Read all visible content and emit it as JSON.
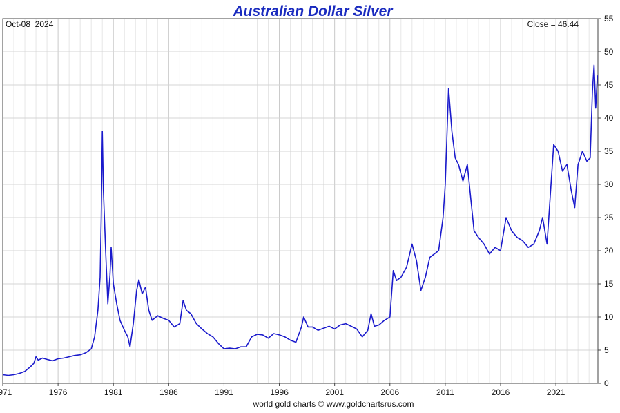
{
  "chart_data": {
    "type": "line",
    "title": "Australian Dollar Silver",
    "date_label": "Oct-08  2024",
    "close_label": "Close = 46.44",
    "credit": "world gold charts © www.goldchartsrus.com",
    "xlabel": "",
    "ylabel": "",
    "xlim": [
      1971,
      2024.8
    ],
    "ylim": [
      0,
      55
    ],
    "x_ticks": [
      1971,
      1976,
      1981,
      1986,
      1991,
      1996,
      2001,
      2006,
      2011,
      2016,
      2021
    ],
    "x_tick_labels": [
      "1971",
      "1976",
      "1981",
      "1986",
      "1991",
      "1996",
      "2001",
      "2006",
      "2011",
      "2016",
      "2021"
    ],
    "y_ticks": [
      0,
      5,
      10,
      15,
      20,
      25,
      30,
      35,
      40,
      45,
      50,
      55
    ],
    "y_axis_side": "right",
    "grid": true,
    "line_color": "#1a1acc",
    "series": [
      {
        "values": [
          [
            1971.0,
            1.3
          ],
          [
            1971.5,
            1.2
          ],
          [
            1972.0,
            1.3
          ],
          [
            1972.5,
            1.5
          ],
          [
            1973.0,
            1.8
          ],
          [
            1973.5,
            2.5
          ],
          [
            1973.8,
            3.0
          ],
          [
            1974.0,
            4.0
          ],
          [
            1974.2,
            3.5
          ],
          [
            1974.6,
            3.8
          ],
          [
            1975.0,
            3.6
          ],
          [
            1975.5,
            3.4
          ],
          [
            1976.0,
            3.7
          ],
          [
            1976.5,
            3.8
          ],
          [
            1977.0,
            4.0
          ],
          [
            1977.5,
            4.2
          ],
          [
            1978.0,
            4.3
          ],
          [
            1978.5,
            4.6
          ],
          [
            1979.0,
            5.2
          ],
          [
            1979.3,
            7.0
          ],
          [
            1979.6,
            11.0
          ],
          [
            1979.8,
            16.0
          ],
          [
            1979.9,
            25.0
          ],
          [
            1980.0,
            38.0
          ],
          [
            1980.1,
            29.0
          ],
          [
            1980.3,
            20.0
          ],
          [
            1980.5,
            12.0
          ],
          [
            1980.7,
            16.5
          ],
          [
            1980.8,
            20.5
          ],
          [
            1981.0,
            15.0
          ],
          [
            1981.3,
            12.0
          ],
          [
            1981.6,
            9.5
          ],
          [
            1982.0,
            8.0
          ],
          [
            1982.3,
            7.0
          ],
          [
            1982.5,
            5.5
          ],
          [
            1982.8,
            9.0
          ],
          [
            1983.1,
            14.0
          ],
          [
            1983.3,
            15.6
          ],
          [
            1983.6,
            13.5
          ],
          [
            1983.9,
            14.5
          ],
          [
            1984.2,
            11.0
          ],
          [
            1984.5,
            9.5
          ],
          [
            1985.0,
            10.2
          ],
          [
            1985.5,
            9.8
          ],
          [
            1986.0,
            9.5
          ],
          [
            1986.5,
            8.5
          ],
          [
            1987.0,
            9.0
          ],
          [
            1987.3,
            12.5
          ],
          [
            1987.6,
            11.0
          ],
          [
            1988.0,
            10.5
          ],
          [
            1988.5,
            9.0
          ],
          [
            1989.0,
            8.2
          ],
          [
            1989.5,
            7.5
          ],
          [
            1990.0,
            7.0
          ],
          [
            1990.5,
            6.0
          ],
          [
            1991.0,
            5.2
          ],
          [
            1991.5,
            5.3
          ],
          [
            1992.0,
            5.2
          ],
          [
            1992.5,
            5.5
          ],
          [
            1993.0,
            5.5
          ],
          [
            1993.5,
            7.0
          ],
          [
            1994.0,
            7.4
          ],
          [
            1994.5,
            7.3
          ],
          [
            1995.0,
            6.8
          ],
          [
            1995.5,
            7.5
          ],
          [
            1996.0,
            7.3
          ],
          [
            1996.5,
            7.0
          ],
          [
            1997.0,
            6.5
          ],
          [
            1997.5,
            6.2
          ],
          [
            1998.0,
            8.5
          ],
          [
            1998.2,
            10.0
          ],
          [
            1998.6,
            8.5
          ],
          [
            1999.0,
            8.5
          ],
          [
            1999.5,
            8.0
          ],
          [
            2000.0,
            8.3
          ],
          [
            2000.5,
            8.6
          ],
          [
            2001.0,
            8.2
          ],
          [
            2001.5,
            8.8
          ],
          [
            2002.0,
            9.0
          ],
          [
            2002.5,
            8.6
          ],
          [
            2003.0,
            8.2
          ],
          [
            2003.5,
            7.0
          ],
          [
            2004.0,
            8.0
          ],
          [
            2004.3,
            10.5
          ],
          [
            2004.6,
            8.6
          ],
          [
            2005.0,
            8.8
          ],
          [
            2005.5,
            9.5
          ],
          [
            2006.0,
            10.0
          ],
          [
            2006.3,
            17.0
          ],
          [
            2006.6,
            15.5
          ],
          [
            2007.0,
            16.0
          ],
          [
            2007.5,
            17.5
          ],
          [
            2008.0,
            21.0
          ],
          [
            2008.4,
            18.5
          ],
          [
            2008.8,
            14.0
          ],
          [
            2009.2,
            16.0
          ],
          [
            2009.6,
            19.0
          ],
          [
            2010.0,
            19.5
          ],
          [
            2010.4,
            20.0
          ],
          [
            2010.8,
            25.0
          ],
          [
            2011.0,
            30.0
          ],
          [
            2011.3,
            44.5
          ],
          [
            2011.6,
            38.0
          ],
          [
            2011.9,
            34.0
          ],
          [
            2012.2,
            33.0
          ],
          [
            2012.6,
            30.5
          ],
          [
            2013.0,
            33.0
          ],
          [
            2013.3,
            28.0
          ],
          [
            2013.6,
            23.0
          ],
          [
            2014.0,
            22.0
          ],
          [
            2014.5,
            21.0
          ],
          [
            2015.0,
            19.5
          ],
          [
            2015.5,
            20.5
          ],
          [
            2016.0,
            20.0
          ],
          [
            2016.5,
            25.0
          ],
          [
            2017.0,
            23.0
          ],
          [
            2017.5,
            22.0
          ],
          [
            2018.0,
            21.5
          ],
          [
            2018.5,
            20.5
          ],
          [
            2019.0,
            21.0
          ],
          [
            2019.5,
            23.0
          ],
          [
            2019.8,
            25.0
          ],
          [
            2020.2,
            21.0
          ],
          [
            2020.5,
            28.5
          ],
          [
            2020.8,
            36.0
          ],
          [
            2021.2,
            35.0
          ],
          [
            2021.6,
            32.0
          ],
          [
            2022.0,
            33.0
          ],
          [
            2022.4,
            29.0
          ],
          [
            2022.7,
            26.5
          ],
          [
            2023.0,
            33.0
          ],
          [
            2023.4,
            35.0
          ],
          [
            2023.8,
            33.5
          ],
          [
            2024.1,
            34.0
          ],
          [
            2024.3,
            44.0
          ],
          [
            2024.45,
            48.0
          ],
          [
            2024.6,
            41.5
          ],
          [
            2024.75,
            46.44
          ]
        ]
      }
    ]
  }
}
